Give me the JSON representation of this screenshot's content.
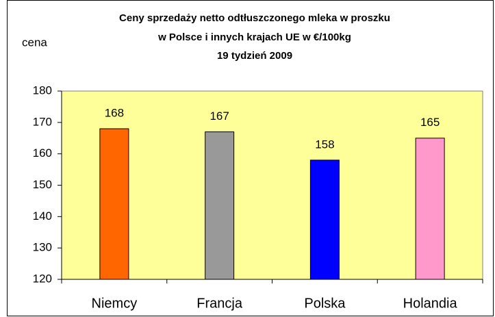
{
  "chart_data": {
    "type": "bar",
    "title": [
      "Ceny sprzedaży netto odtłuszczonego mleka w proszku",
      "w Polsce i innych krajach UE w €/100kg",
      "19 tydzień 2009"
    ],
    "y_label": "cena",
    "categories": [
      "Niemcy",
      "Francja",
      "Polska",
      "Holandia"
    ],
    "values": [
      168,
      167,
      158,
      165
    ],
    "colors": [
      "#ff6600",
      "#999999",
      "#0000ff",
      "#ff99cc"
    ],
    "ylim": [
      120,
      180
    ],
    "yticks": [
      120,
      130,
      140,
      150,
      160,
      170,
      180
    ],
    "grid": false,
    "plot_background": "#ffff99"
  }
}
